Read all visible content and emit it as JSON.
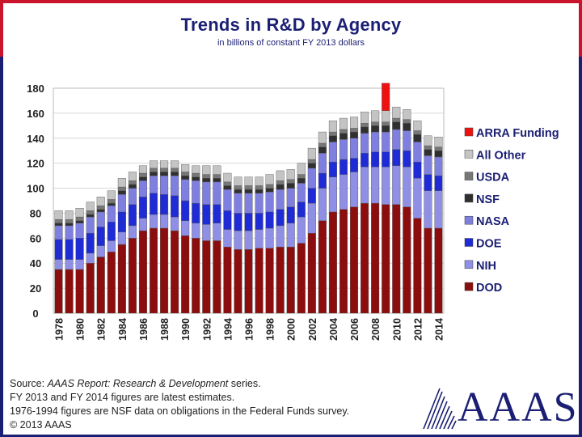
{
  "chart_data": {
    "type": "bar",
    "stacked": true,
    "title": "Trends in R&D by Agency",
    "subtitle": "in billions of constant FY 2013 dollars",
    "ylim": [
      0,
      180
    ],
    "yticks": [
      0,
      20,
      40,
      60,
      80,
      100,
      120,
      140,
      160,
      180
    ],
    "categories": [
      "1978",
      "1979",
      "1980",
      "1981",
      "1982",
      "1983",
      "1984",
      "1985",
      "1986",
      "1987",
      "1988",
      "1989",
      "1990",
      "1991",
      "1992",
      "1993",
      "1994",
      "1995",
      "1996",
      "1997",
      "1998",
      "1999",
      "2000",
      "2001",
      "2002",
      "2003",
      "2004",
      "2005",
      "2006",
      "2007",
      "2008",
      "2009",
      "2010",
      "2011",
      "2012",
      "2013",
      "2014"
    ],
    "xtick_labels": [
      "1978",
      "1980",
      "1982",
      "1984",
      "1986",
      "1988",
      "1990",
      "1992",
      "1994",
      "1996",
      "1998",
      "2000",
      "2002",
      "2004",
      "2006",
      "2008",
      "2010",
      "2012",
      "2014"
    ],
    "legend_position": "right",
    "series": [
      {
        "name": "DOD",
        "color": "#8b0d0d",
        "values": [
          35,
          35,
          35,
          40,
          45,
          49,
          55,
          60,
          66,
          68,
          68,
          66,
          62,
          60,
          58,
          58,
          53,
          51,
          51,
          52,
          52,
          53,
          53,
          56,
          64,
          74,
          81,
          83,
          85,
          88,
          88,
          87,
          87,
          85,
          76,
          68,
          68
        ]
      },
      {
        "name": "NIH",
        "color": "#8f8fe6",
        "values": [
          8,
          8,
          8,
          8,
          9,
          9,
          10,
          10,
          10,
          11,
          11,
          11,
          12,
          12,
          13,
          14,
          14,
          15,
          15,
          15,
          16,
          17,
          19,
          21,
          24,
          26,
          28,
          28,
          28,
          29,
          29,
          30,
          31,
          32,
          32,
          30,
          30
        ]
      },
      {
        "name": "DOE",
        "color": "#1f2bd4",
        "values": [
          16,
          16,
          17,
          16,
          15,
          15,
          16,
          17,
          17,
          17,
          16,
          17,
          16,
          16,
          16,
          15,
          15,
          14,
          14,
          13,
          13,
          13,
          13,
          12,
          12,
          12,
          12,
          12,
          11,
          11,
          12,
          12,
          13,
          13,
          13,
          13,
          12
        ]
      },
      {
        "name": "NASA",
        "color": "#7f7fe0",
        "values": [
          11,
          11,
          12,
          13,
          12,
          13,
          14,
          13,
          13,
          14,
          15,
          16,
          17,
          18,
          18,
          18,
          17,
          16,
          16,
          16,
          16,
          16,
          15,
          15,
          16,
          16,
          16,
          16,
          16,
          16,
          16,
          16,
          16,
          16,
          16,
          15,
          15
        ]
      },
      {
        "name": "NSF",
        "color": "#303030",
        "values": [
          2,
          2,
          2,
          2,
          2,
          2,
          3,
          3,
          3,
          3,
          3,
          3,
          3,
          3,
          3,
          3,
          3,
          3,
          3,
          3,
          3,
          4,
          4,
          4,
          4,
          5,
          5,
          5,
          5,
          5,
          5,
          5,
          6,
          6,
          6,
          5,
          5
        ]
      },
      {
        "name": "USDA",
        "color": "#777777",
        "values": [
          3,
          3,
          3,
          3,
          3,
          3,
          3,
          3,
          3,
          3,
          3,
          3,
          3,
          3,
          3,
          3,
          3,
          3,
          3,
          3,
          3,
          3,
          3,
          3,
          3,
          3,
          3,
          3,
          3,
          3,
          3,
          3,
          3,
          3,
          3,
          3,
          3
        ]
      },
      {
        "name": "All Other",
        "color": "#c4c4c4",
        "values": [
          7,
          7,
          7,
          7,
          7,
          7,
          7,
          7,
          6,
          6,
          6,
          6,
          6,
          6,
          7,
          7,
          7,
          7,
          7,
          7,
          8,
          8,
          8,
          9,
          9,
          9,
          9,
          9,
          9,
          9,
          9,
          9,
          9,
          8,
          8,
          8,
          8
        ]
      },
      {
        "name": "ARRA Funding",
        "color": "#ee1111",
        "values": [
          0,
          0,
          0,
          0,
          0,
          0,
          0,
          0,
          0,
          0,
          0,
          0,
          0,
          0,
          0,
          0,
          0,
          0,
          0,
          0,
          0,
          0,
          0,
          0,
          0,
          0,
          0,
          0,
          0,
          0,
          0,
          22,
          0,
          0,
          0,
          0,
          0
        ]
      }
    ],
    "legend_order": [
      "ARRA Funding",
      "All Other",
      "USDA",
      "NSF",
      "NASA",
      "DOE",
      "NIH",
      "DOD"
    ]
  },
  "source_notes": {
    "line1_prefix": "Source: ",
    "line1_report": "AAAS Report: Research & Development",
    "line1_suffix": " series.",
    "line2": "FY 2013 and FY 2014 figures are latest estimates.",
    "line3": "1976-1994 figures are NSF data on obligations in the Federal Funds survey.",
    "line4": "© 2013 AAAS"
  },
  "logo": {
    "text": "AAAS",
    "color": "#1b1f73"
  }
}
